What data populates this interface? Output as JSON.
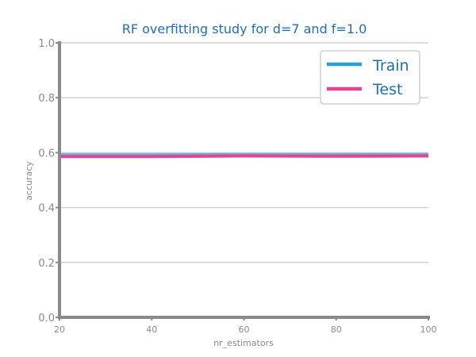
{
  "chart_data": {
    "type": "line",
    "title": "RF overfitting study for d=7 and f=1.0",
    "xlabel": "nr_estimators",
    "ylabel": "accuracy",
    "x": [
      20,
      40,
      60,
      80,
      100
    ],
    "xticks": [
      20,
      40,
      60,
      80,
      100
    ],
    "yticks": [
      0.0,
      0.2,
      0.4,
      0.6,
      0.8,
      1.0
    ],
    "xlim": [
      20,
      100
    ],
    "ylim": [
      0.0,
      1.0
    ],
    "grid": "horizontal",
    "legend_position": "top-right",
    "series": [
      {
        "name": "Train",
        "color": "#2b9fd6",
        "values": [
          0.592,
          0.592,
          0.593,
          0.593,
          0.593
        ]
      },
      {
        "name": "Test",
        "color": "#e84393",
        "values": [
          0.586,
          0.586,
          0.588,
          0.587,
          0.588
        ]
      }
    ]
  }
}
